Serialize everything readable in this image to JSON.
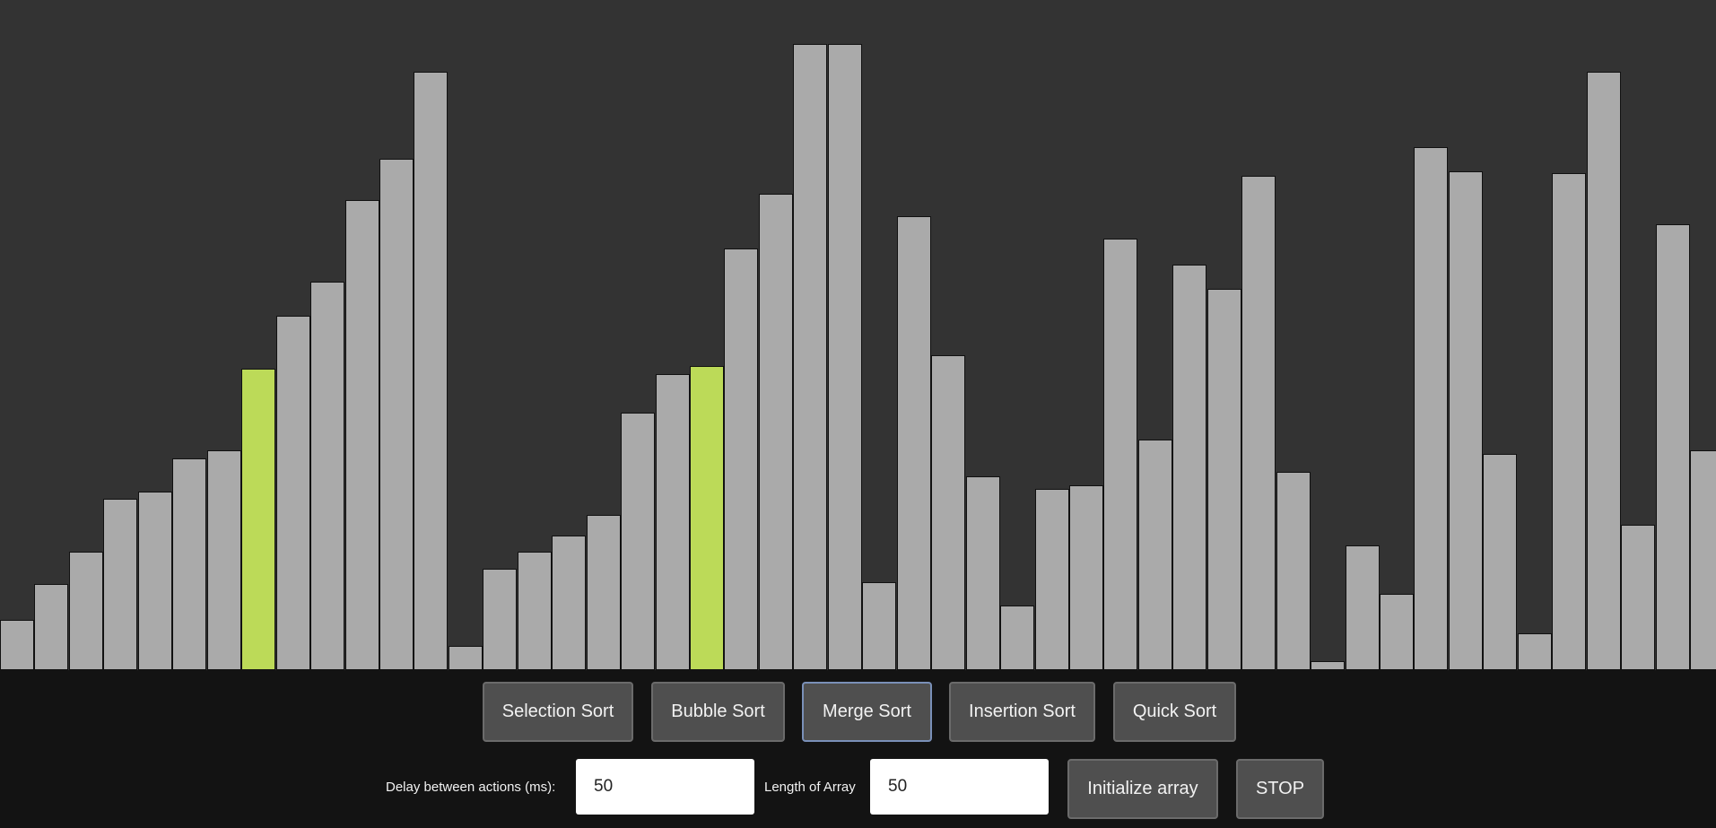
{
  "chart_data": {
    "type": "bar",
    "title": "",
    "ylim": [
      0,
      700
    ],
    "bar_color": "#aaaaaa",
    "highlight_color": "#bcda58",
    "background_color": "#333333",
    "values": [
      56,
      96,
      132,
      192,
      200,
      237,
      246,
      337,
      396,
      434,
      526,
      572,
      669,
      27,
      113,
      132,
      150,
      173,
      288,
      331,
      340,
      471,
      533,
      700,
      700,
      98,
      507,
      352,
      217,
      72,
      203,
      207,
      482,
      258,
      453,
      426,
      553,
      222,
      10,
      139,
      85,
      585,
      558,
      242,
      41,
      556,
      669,
      162,
      498,
      246
    ],
    "highlighted": [
      7,
      20
    ]
  },
  "sort_buttons": [
    {
      "label": "Selection Sort"
    },
    {
      "label": "Bubble Sort"
    },
    {
      "label": "Merge Sort"
    },
    {
      "label": "Insertion Sort"
    },
    {
      "label": "Quick Sort"
    }
  ],
  "delay": {
    "label": "Delay between actions (ms):",
    "value": "50"
  },
  "length": {
    "label": "Length of Array",
    "value": "50"
  },
  "init_button": {
    "label": "Initialize array"
  },
  "stop_button": {
    "label": "STOP"
  }
}
